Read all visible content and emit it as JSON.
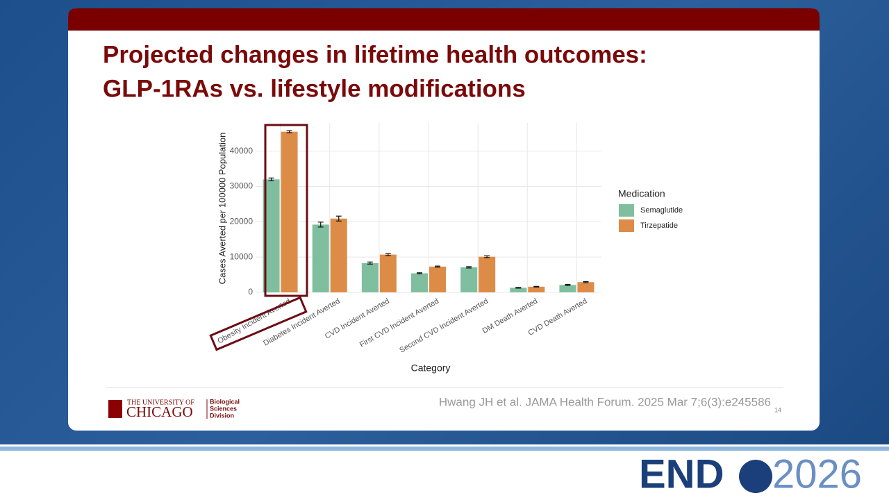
{
  "slide": {
    "title_line1": "Projected changes in lifetime health outcomes:",
    "title_line2": "GLP-1RAs vs. lifestyle modifications",
    "logo_top": "THE UNIVERSITY OF",
    "logo_main": "CHICAGO",
    "logo_division": [
      "Biological",
      "Sciences",
      "Division"
    ],
    "citation": "Hwang JH et al. JAMA Health Forum. 2025 Mar 7;6(3):e245586",
    "page_number": "14",
    "event_logo_a": "END",
    "event_logo_b": "2026"
  },
  "chart_data": {
    "type": "bar",
    "y_label": "Cases Averted per 100000 Population",
    "x_label": "Category",
    "legend_title": "Medication",
    "categories": [
      "Obesity Incident Averted",
      "Diabetes Incident Averted",
      "CVD Incident Averted",
      "First CVD Incident Averted",
      "Second CVD Incident Averted",
      "DM Death Averted",
      "CVD Death Averted"
    ],
    "series": [
      {
        "name": "Semaglutide",
        "color": "#7fbf9f",
        "values": [
          32000,
          19200,
          8300,
          5400,
          7100,
          1300,
          2100
        ],
        "errors": [
          400,
          700,
          300,
          150,
          200,
          100,
          150
        ]
      },
      {
        "name": "Tirzepatide",
        "color": "#dd8c48",
        "values": [
          45500,
          20900,
          10700,
          7300,
          10100,
          1600,
          2900
        ],
        "errors": [
          300,
          700,
          300,
          150,
          250,
          100,
          150
        ]
      }
    ],
    "ylim": [
      0,
      48000
    ],
    "yticks": [
      0,
      10000,
      20000,
      30000,
      40000
    ],
    "grid": true
  }
}
